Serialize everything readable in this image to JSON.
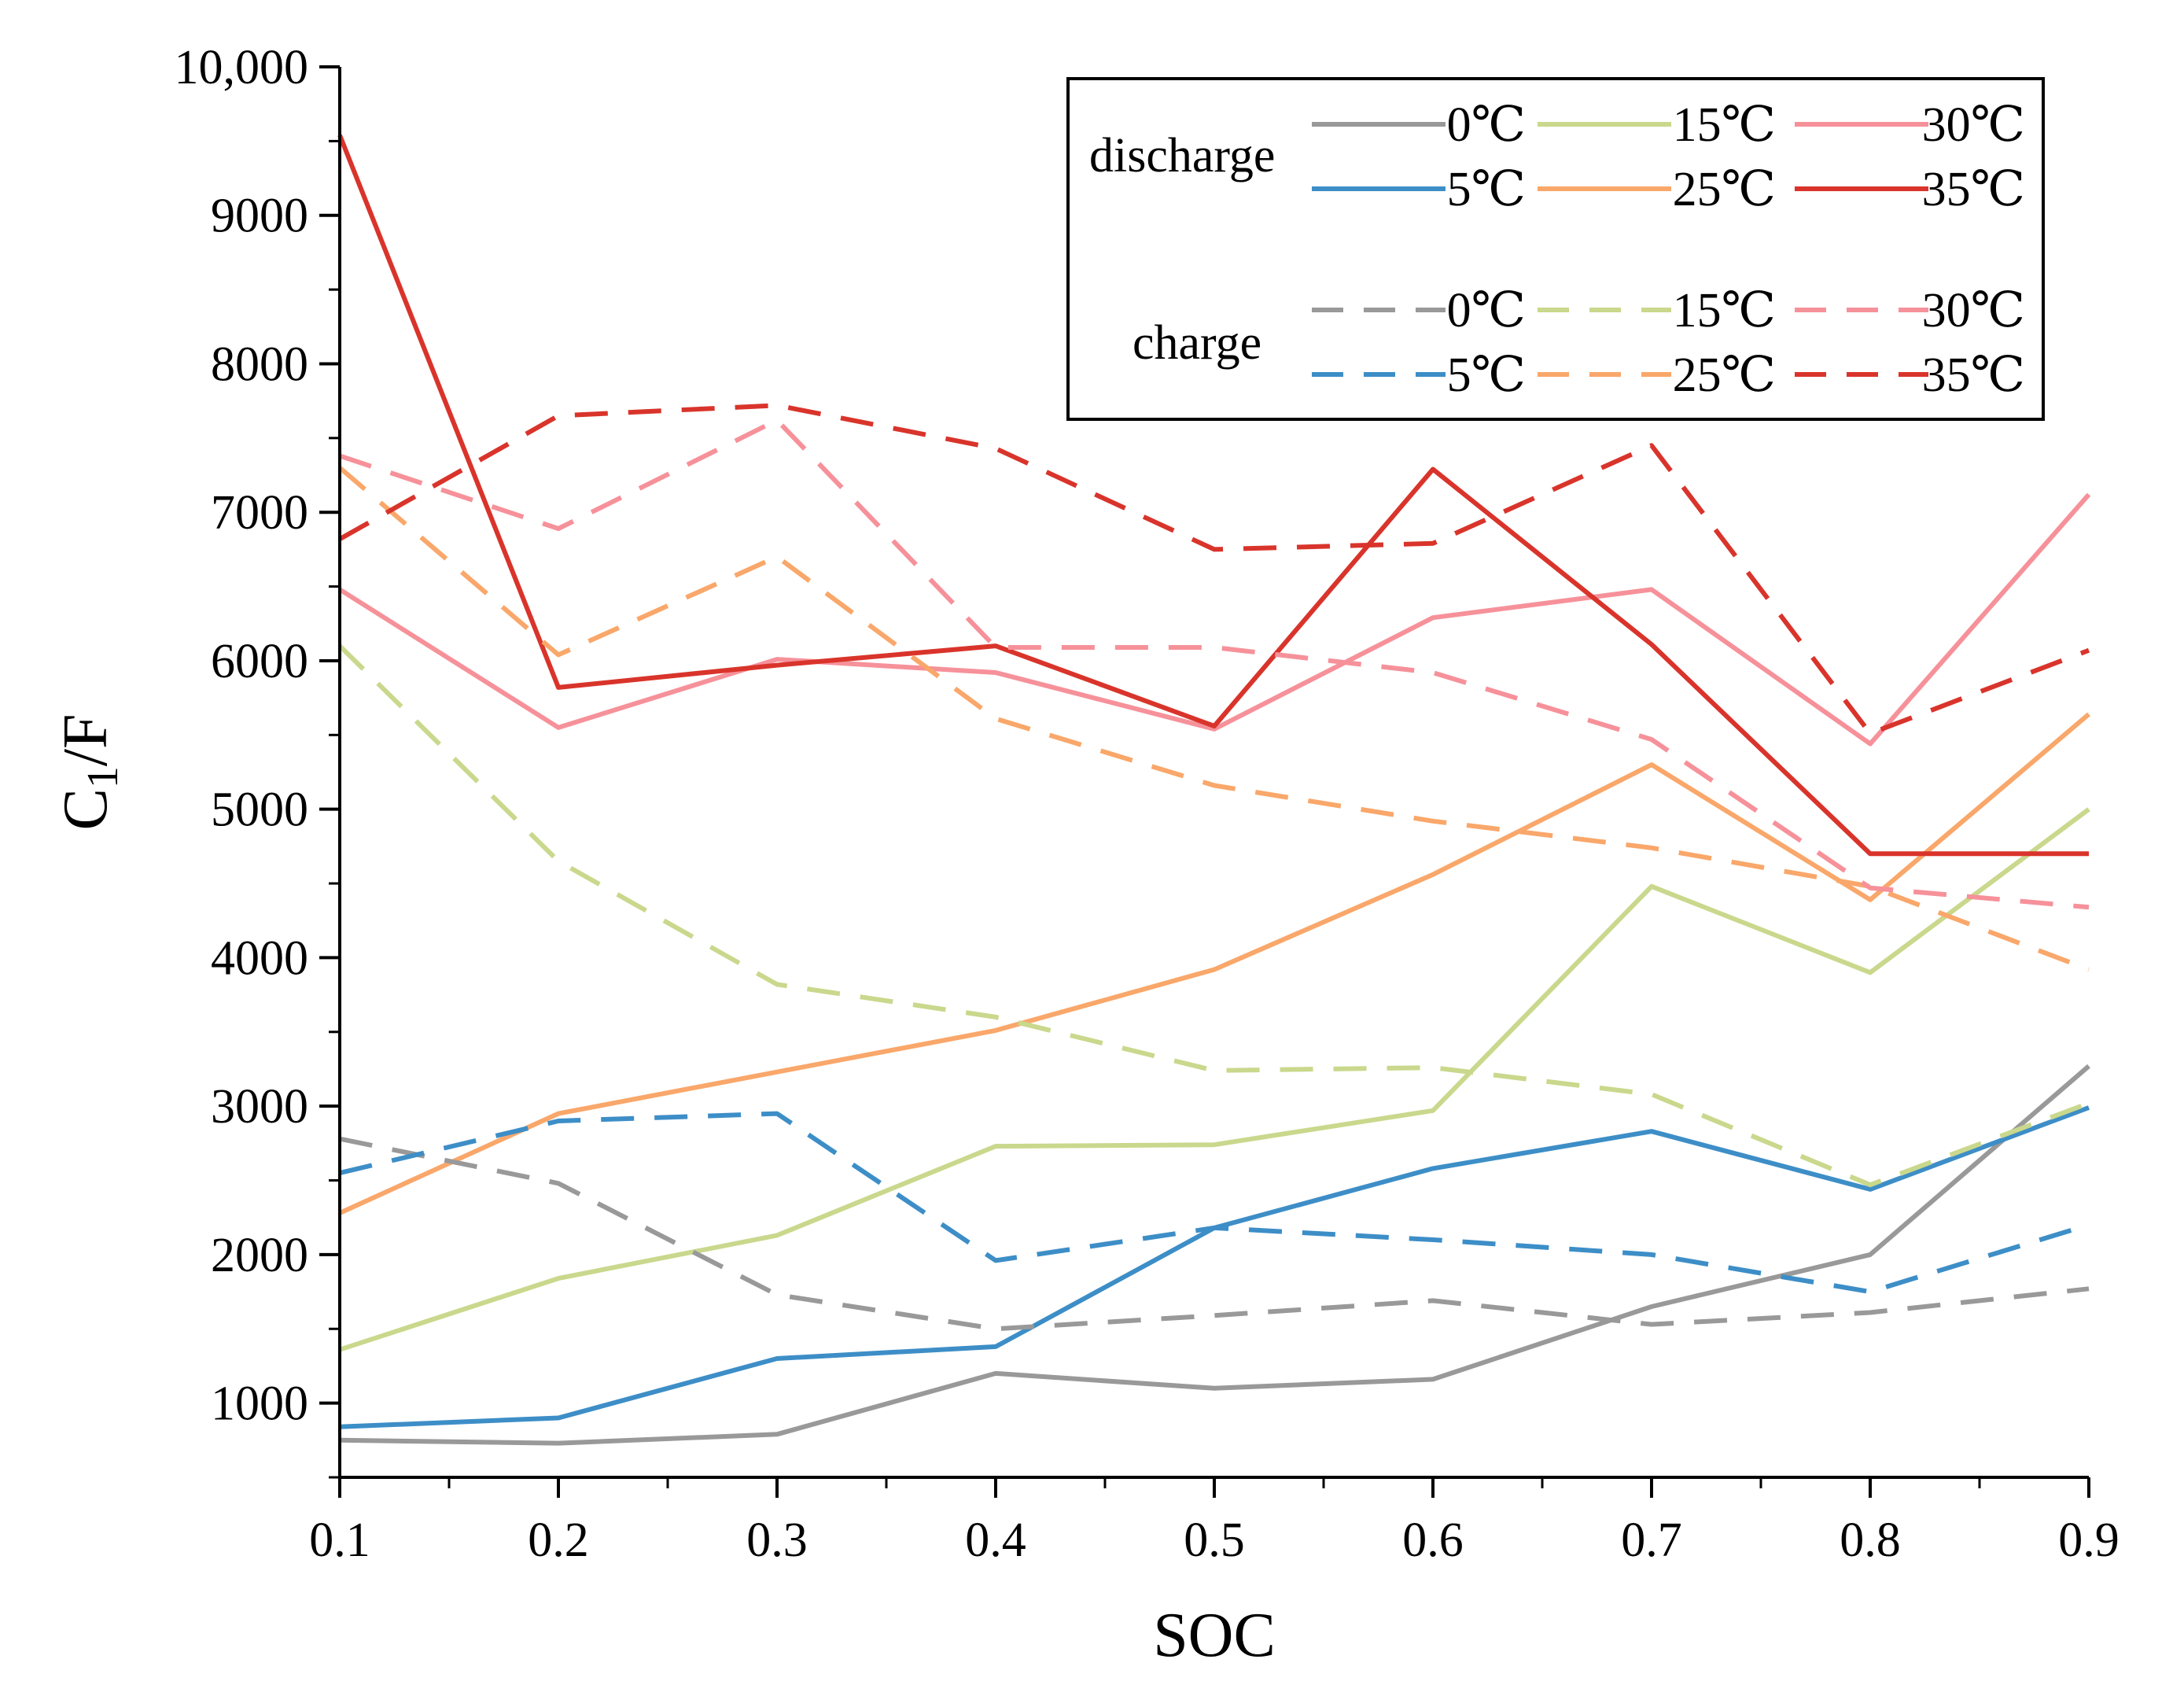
{
  "chart_data": {
    "type": "line",
    "title": "",
    "xlabel": "SOC",
    "ylabel": "C1/F",
    "ylabel_main": "C",
    "ylabel_sub": "1",
    "ylabel_tail": "/F",
    "xlim": [
      0.1,
      0.9
    ],
    "ylim": [
      500,
      10000
    ],
    "x_ticks": [
      0.1,
      0.2,
      0.3,
      0.4,
      0.5,
      0.6,
      0.7,
      0.8,
      0.9
    ],
    "x_tick_labels": [
      "0.1",
      "0.2",
      "0.3",
      "0.4",
      "0.5",
      "0.6",
      "0.7",
      "0.8",
      "0.9"
    ],
    "y_ticks": [
      1000,
      2000,
      3000,
      4000,
      5000,
      6000,
      7000,
      8000,
      9000,
      10000
    ],
    "y_tick_labels": [
      "1000",
      "2000",
      "3000",
      "4000",
      "5000",
      "6000",
      "7000",
      "8000",
      "9000",
      "10,000"
    ],
    "grid": false,
    "legend_position": "top-right",
    "legend_groups": [
      "discharge",
      "charge"
    ],
    "x": [
      0.1,
      0.2,
      0.3,
      0.4,
      0.5,
      0.6,
      0.7,
      0.8,
      0.9
    ],
    "series": [
      {
        "name": "0℃",
        "group": "discharge",
        "color": "#999999",
        "dashed": false,
        "values": [
          750,
          730,
          790,
          1200,
          1100,
          1160,
          1650,
          2000,
          3270
        ]
      },
      {
        "name": "5℃",
        "group": "discharge",
        "color": "#3d8ec7",
        "dashed": false,
        "values": [
          840,
          900,
          1300,
          1380,
          2180,
          2580,
          2830,
          2440,
          2990
        ]
      },
      {
        "name": "15℃",
        "group": "discharge",
        "color": "#c9d88c",
        "dashed": false,
        "values": [
          1360,
          1840,
          2130,
          2730,
          2740,
          2970,
          4480,
          3900,
          5000
        ]
      },
      {
        "name": "25℃",
        "group": "discharge",
        "color": "#f9a76a",
        "dashed": false,
        "values": [
          2280,
          2950,
          3230,
          3510,
          3920,
          4560,
          5300,
          4390,
          5640
        ]
      },
      {
        "name": "30℃",
        "group": "discharge",
        "color": "#f6919a",
        "dashed": false,
        "values": [
          6480,
          5550,
          6010,
          5920,
          5540,
          6290,
          6480,
          5440,
          7120
        ]
      },
      {
        "name": "35℃",
        "group": "discharge",
        "color": "#d9342b",
        "dashed": false,
        "values": [
          9540,
          5820,
          5970,
          6100,
          5560,
          7290,
          6110,
          4700,
          4700
        ]
      },
      {
        "name": "0℃",
        "group": "charge",
        "color": "#999999",
        "dashed": true,
        "values": [
          2780,
          2480,
          1730,
          1500,
          1590,
          1690,
          1530,
          1610,
          1770
        ]
      },
      {
        "name": "5℃",
        "group": "charge",
        "color": "#3d8ec7",
        "dashed": true,
        "values": [
          2550,
          2900,
          2950,
          1960,
          2180,
          2100,
          2000,
          1750,
          2200
        ]
      },
      {
        "name": "15℃",
        "group": "charge",
        "color": "#c9d88c",
        "dashed": true,
        "values": [
          6100,
          4650,
          3820,
          3600,
          3240,
          3260,
          3080,
          2470,
          3020
        ]
      },
      {
        "name": "25℃",
        "group": "charge",
        "color": "#f9a76a",
        "dashed": true,
        "values": [
          7300,
          6040,
          6700,
          5610,
          5160,
          4920,
          4740,
          4480,
          3920
        ]
      },
      {
        "name": "30℃",
        "group": "charge",
        "color": "#f6919a",
        "dashed": true,
        "values": [
          7380,
          6890,
          7620,
          6090,
          6090,
          5920,
          5470,
          4470,
          4340
        ]
      },
      {
        "name": "35℃",
        "group": "charge",
        "color": "#d9342b",
        "dashed": true,
        "values": [
          6820,
          7650,
          7720,
          7430,
          6750,
          6790,
          7450,
          5510,
          6070
        ]
      }
    ]
  }
}
